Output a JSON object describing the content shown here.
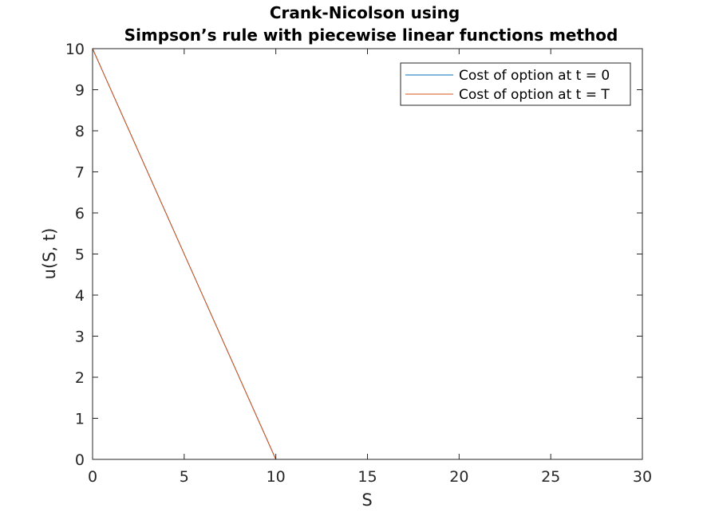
{
  "chart_data": {
    "type": "line",
    "title": [
      "Crank-Nicolson using",
      "Simpson’s  rule  with piecewise linear functions method"
    ],
    "xlabel": "S",
    "ylabel": "u(S, t)",
    "xlim": [
      0,
      30
    ],
    "ylim": [
      0,
      10
    ],
    "xticks": [
      0,
      5,
      10,
      15,
      20,
      25,
      30
    ],
    "yticks": [
      0,
      1,
      2,
      3,
      4,
      5,
      6,
      7,
      8,
      9,
      10
    ],
    "grid": false,
    "legend_position": "top-right",
    "series": [
      {
        "name": "Cost of option at t = 0",
        "color": "#0072BD",
        "x": [
          0,
          10,
          27.2
        ],
        "y": [
          10,
          0,
          0
        ]
      },
      {
        "name": "Cost of option at t = T",
        "color": "#D95319",
        "x": [
          0,
          10,
          27.2
        ],
        "y": [
          10,
          0,
          0
        ]
      }
    ]
  }
}
